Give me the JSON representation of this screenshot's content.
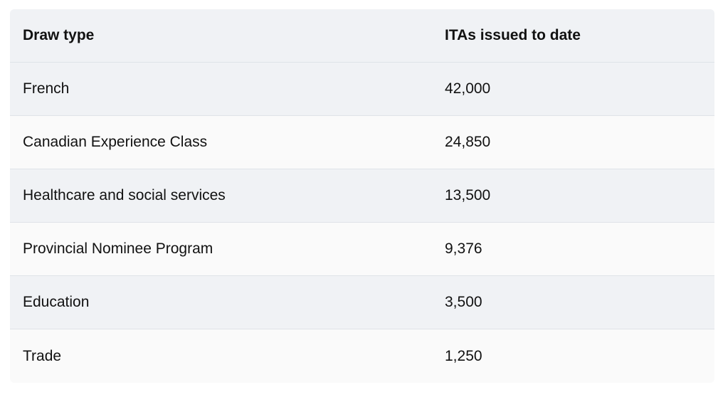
{
  "table": {
    "headers": [
      "Draw type",
      "ITAs issued to date"
    ],
    "rows": [
      [
        "French",
        "42,000"
      ],
      [
        "Canadian Experience Class",
        "24,850"
      ],
      [
        "Healthcare and social services",
        "13,500"
      ],
      [
        "Provincial Nominee Program",
        "9,376"
      ],
      [
        "Education",
        "3,500"
      ],
      [
        "Trade",
        "1,250"
      ]
    ]
  }
}
